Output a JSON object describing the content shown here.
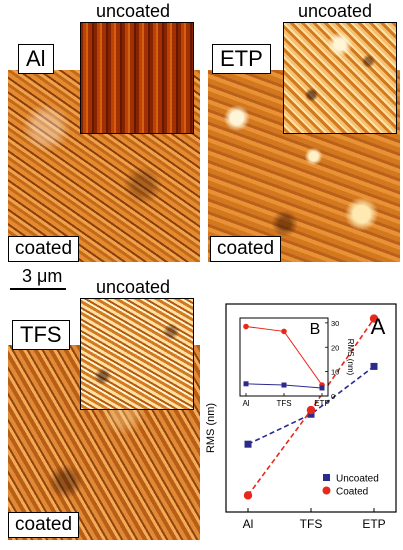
{
  "panels": {
    "al": {
      "label": "Al",
      "coated": "coated",
      "uncoated": "uncoated"
    },
    "etp": {
      "label": "ETP",
      "uncoated": "uncoated",
      "coated": "coated"
    },
    "tfs": {
      "label": "TFS",
      "uncoated": "uncoated",
      "coated": "coated"
    },
    "scale_bar": "3 μm"
  },
  "chart_data": [
    {
      "panel_label": "A",
      "type": "line",
      "categories": [
        "Al",
        "TFS",
        "ETP"
      ],
      "ylabel": "RMS (nm)",
      "series": [
        {
          "name": "Uncoated",
          "values": [
            203,
            275,
            390
          ],
          "color": "#2b2b8c",
          "marker": "square"
        },
        {
          "name": "Coated",
          "values": [
            80,
            285,
            505
          ],
          "color": "#e8281a",
          "marker": "circle"
        }
      ],
      "ylim": [
        40,
        540
      ],
      "legend": "bottom-right",
      "grid": false
    },
    {
      "panel_label": "B",
      "type": "line",
      "categories": [
        "Al",
        "TFS",
        "ETP"
      ],
      "ylabel": "RMS (nm)",
      "yticks": [
        "0",
        "10",
        "20",
        "30"
      ],
      "ylim": [
        0,
        32
      ],
      "series": [
        {
          "name": "Coated",
          "values": [
            28.5,
            26.5,
            4.5
          ],
          "color": "#e8281a",
          "marker": "circle"
        },
        {
          "name": "Uncoated",
          "values": [
            5,
            4.5,
            3.3
          ],
          "color": "#2b2b8c",
          "marker": "square"
        }
      ]
    }
  ]
}
